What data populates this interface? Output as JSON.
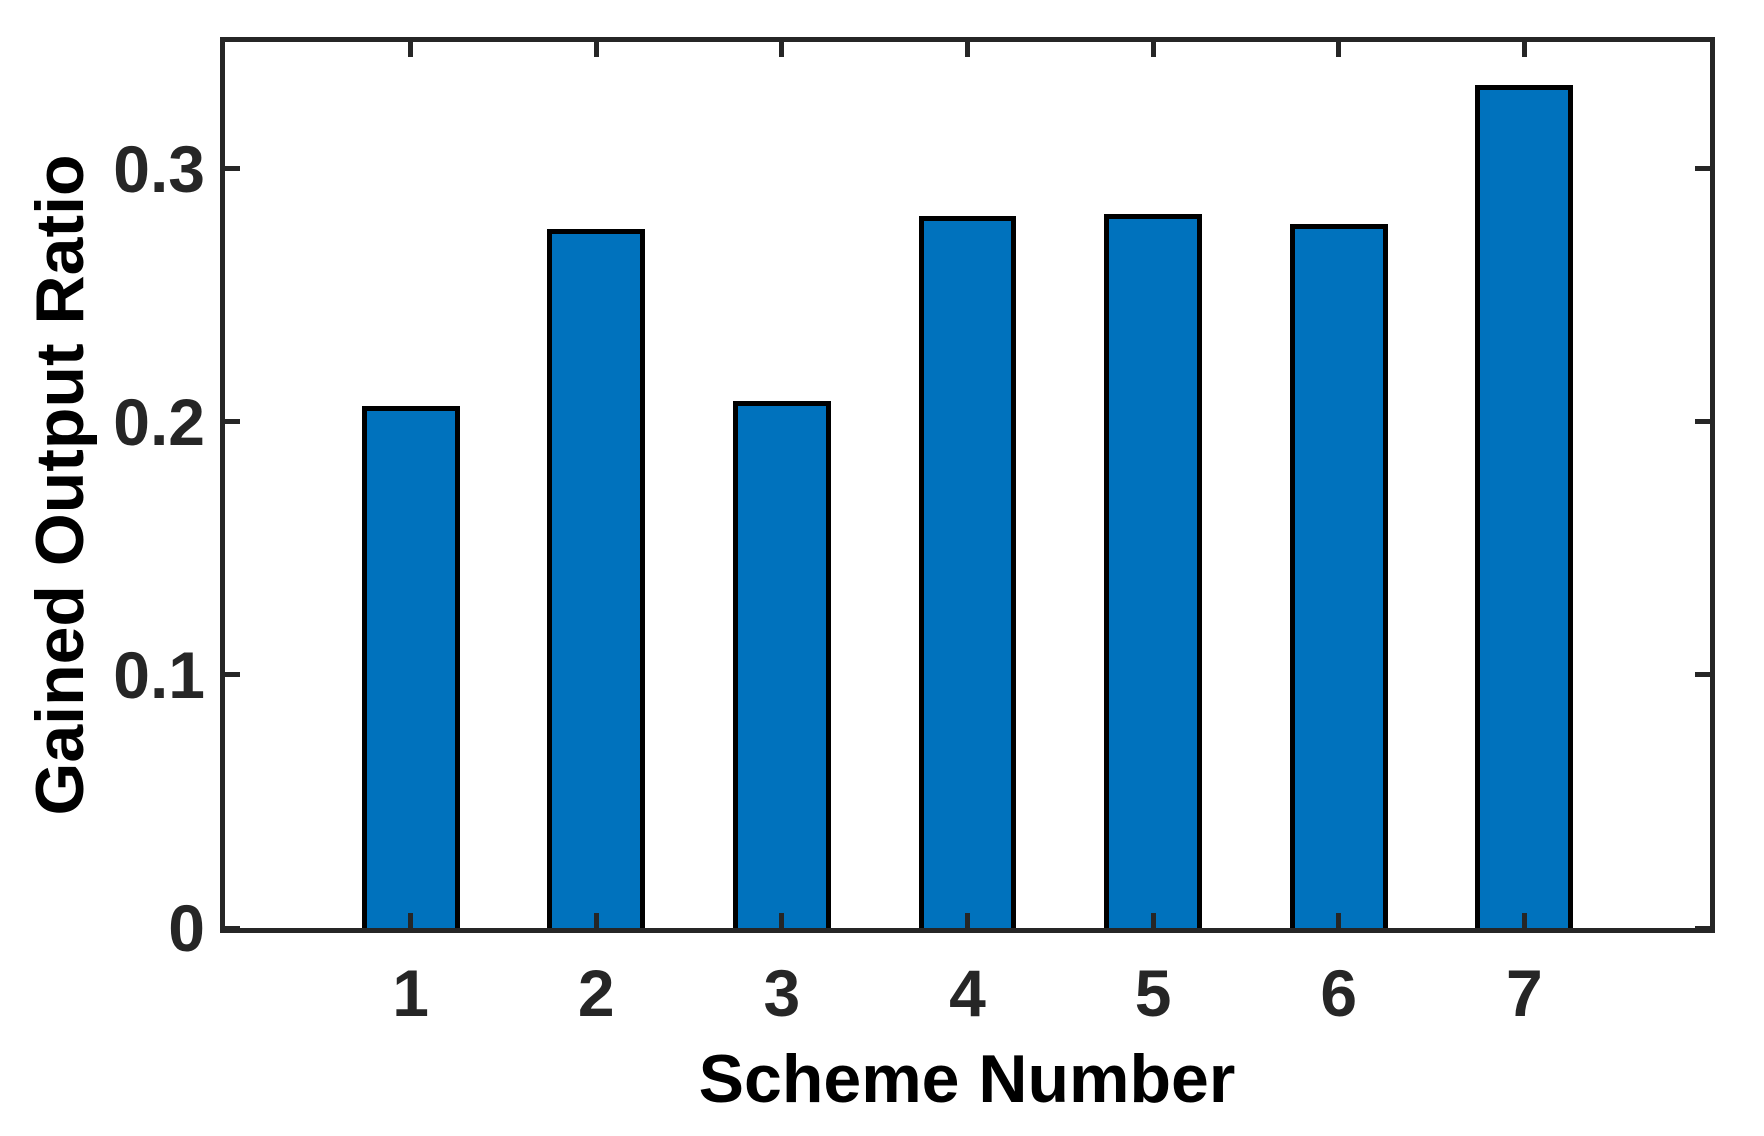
{
  "chart_data": {
    "type": "bar",
    "title": "",
    "xlabel": "Scheme Number",
    "ylabel": "Gained Output Ratio",
    "categories": [
      "1",
      "2",
      "3",
      "4",
      "5",
      "6",
      "7"
    ],
    "values": [
      0.205,
      0.275,
      0.207,
      0.28,
      0.281,
      0.277,
      0.332
    ],
    "series_name": "Gained Output Ratio",
    "xlim": [
      0,
      8
    ],
    "ylim": [
      0,
      0.35
    ],
    "yticks": [
      0,
      0.1,
      0.2,
      0.3
    ],
    "ytick_labels": [
      "0",
      "0.1",
      "0.2",
      "0.3"
    ],
    "bar_width_units": 0.5,
    "grid": false,
    "legend_position": "none",
    "colors": {
      "bar_fill": "#0072BD",
      "bar_edge": "#000000",
      "axis": "#262626",
      "label_text": "#000000"
    }
  }
}
